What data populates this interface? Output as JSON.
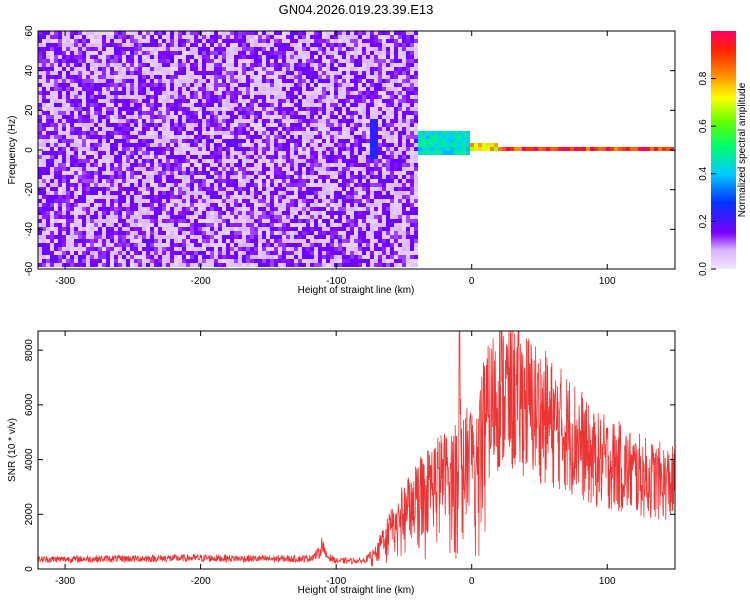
{
  "chart_data": [
    {
      "type": "heatmap",
      "title": "GN04.2026.019.23.39.E13",
      "xlabel": "Height of straight line (km)",
      "ylabel": "Frequency (Hz)",
      "xlim": [
        -320,
        150
      ],
      "ylim": [
        -60,
        60
      ],
      "xticks": [
        -300,
        -200,
        -100,
        0,
        100
      ],
      "yticks": [
        -60,
        -40,
        -20,
        0,
        20,
        40,
        60
      ],
      "grid": false,
      "colorbar": {
        "label": "Normalized spectral amplitude",
        "range": [
          0,
          1
        ],
        "ticks": [
          0.0,
          0.2,
          0.4,
          0.6,
          0.8
        ]
      },
      "features": [
        {
          "x_range": [
            -320,
            -40
          ],
          "y_range": [
            -60,
            60
          ],
          "amplitude": 0.12
        },
        {
          "x_range": [
            -76,
            -70
          ],
          "y_range": [
            -5,
            15
          ],
          "amplitude": 0.25
        },
        {
          "x_range": [
            -40,
            0
          ],
          "y_range": [
            -3,
            9
          ],
          "amplitude": 0.45
        },
        {
          "x_range": [
            0,
            20
          ],
          "y_range": [
            -2,
            3
          ],
          "amplitude": 0.75
        },
        {
          "x_range": [
            20,
            150
          ],
          "y_range": [
            -1,
            1
          ],
          "amplitude": 0.95
        }
      ]
    },
    {
      "type": "line",
      "xlabel": "Height of straight line (km)",
      "ylabel": "SNR (10 * v/v)",
      "xlim": [
        -320,
        150
      ],
      "ylim": [
        0,
        8700
      ],
      "xticks": [
        -300,
        -200,
        -100,
        0,
        100
      ],
      "yticks": [
        0,
        2000,
        4000,
        6000,
        8000
      ],
      "grid": false,
      "series": [
        {
          "color": "#ee3333",
          "x": [
            -320,
            -300,
            -250,
            -200,
            -150,
            -120,
            -112,
            -110,
            -108,
            -100,
            -80,
            -70,
            -65,
            -60,
            -55,
            -50,
            -45,
            -40,
            -35,
            -30,
            -25,
            -20,
            -15,
            -10,
            -9,
            -8,
            -5,
            0,
            5,
            10,
            15,
            20,
            30,
            40,
            50,
            60,
            70,
            80,
            85,
            90,
            100,
            110,
            120,
            130,
            140,
            150
          ],
          "y": [
            350,
            360,
            380,
            400,
            370,
            380,
            600,
            1000,
            500,
            300,
            300,
            600,
            1200,
            1500,
            1800,
            2200,
            2600,
            2800,
            3000,
            3200,
            3400,
            3500,
            3600,
            3700,
            8500,
            3800,
            4000,
            4300,
            4800,
            5400,
            6000,
            6500,
            6300,
            6100,
            5700,
            5300,
            5000,
            4700,
            4200,
            4000,
            3900,
            3700,
            3500,
            3300,
            3200,
            3100
          ]
        }
      ]
    }
  ]
}
